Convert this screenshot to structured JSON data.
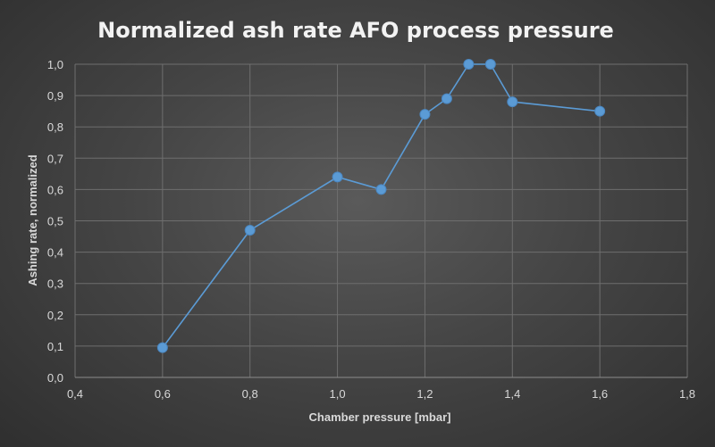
{
  "chart_data": {
    "type": "line",
    "title": "Normalized ash rate AFO process pressure",
    "xlabel": "Chamber pressure [mbar]",
    "ylabel": "Ashing rate, normalized",
    "xlim": [
      0.4,
      1.8
    ],
    "ylim": [
      0.0,
      1.0
    ],
    "x_ticks": [
      "0,4",
      "0,6",
      "0,8",
      "1,0",
      "1,2",
      "1,4",
      "1,6",
      "1,8"
    ],
    "y_ticks": [
      "0,0",
      "0,1",
      "0,2",
      "0,3",
      "0,4",
      "0,5",
      "0,6",
      "0,7",
      "0,8",
      "0,9",
      "1,0"
    ],
    "grid": true,
    "legend": "none",
    "series": [
      {
        "color": "#5b9bd5",
        "x": [
          0.6,
          0.8,
          1.0,
          1.1,
          1.2,
          1.25,
          1.3,
          1.35,
          1.4,
          1.6
        ],
        "y": [
          0.095,
          0.47,
          0.64,
          0.6,
          0.84,
          0.89,
          1.0,
          1.0,
          0.88,
          0.85
        ]
      }
    ]
  }
}
